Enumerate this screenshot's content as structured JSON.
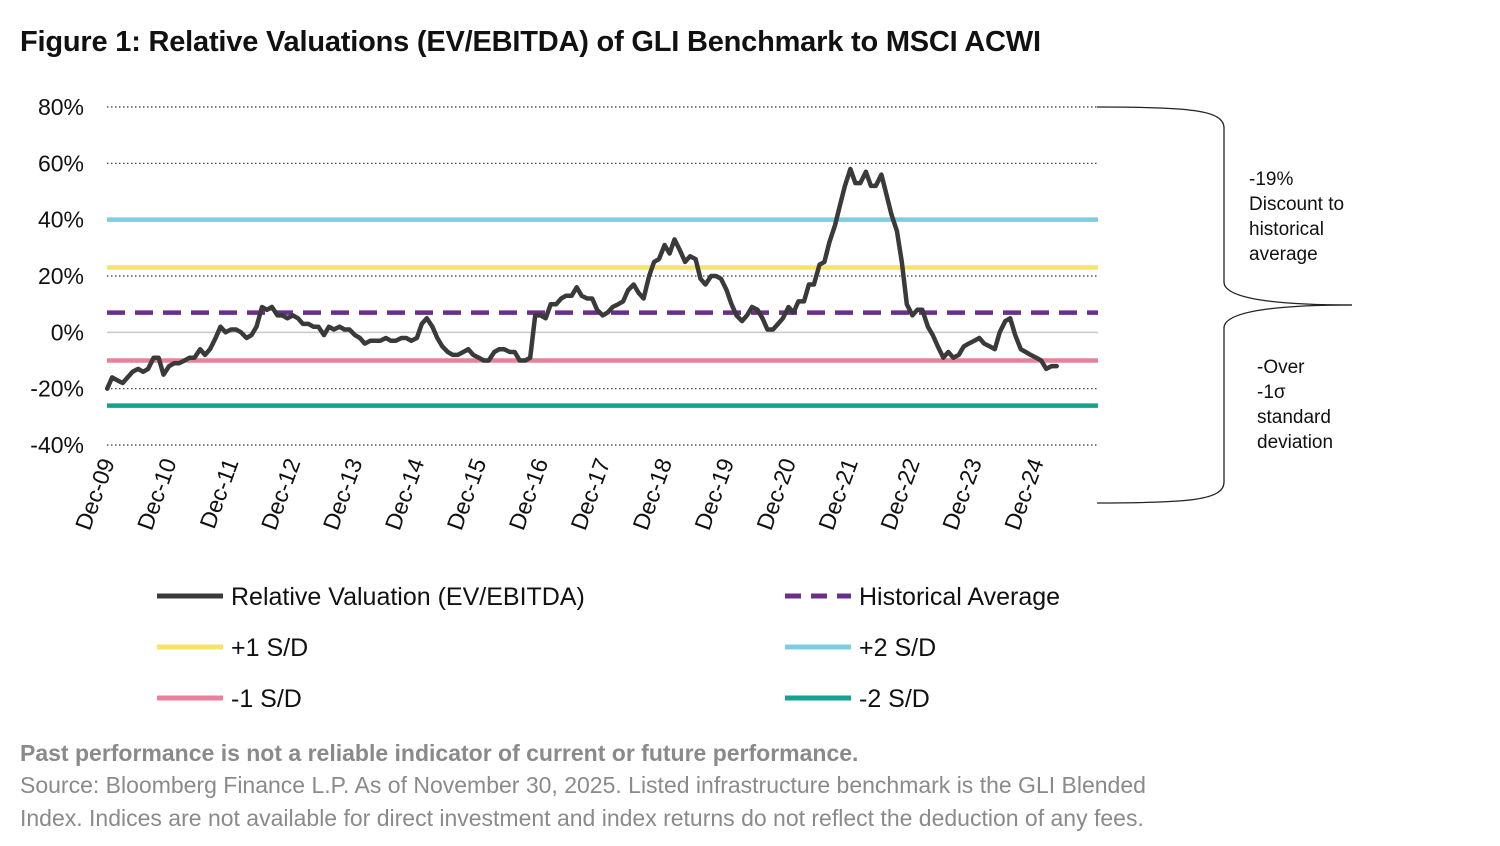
{
  "title": "Figure 1: Relative Valuations (EV/EBITDA) of GLI Benchmark to MSCI ACWI",
  "chart_data": {
    "type": "line",
    "title": "Figure 1: Relative Valuations (EV/EBITDA) of GLI Benchmark to MSCI ACWI",
    "ylim": [
      -40,
      80
    ],
    "y_ticks": [
      "80%",
      "60%",
      "40%",
      "20%",
      "0%",
      "-20%",
      "-40%"
    ],
    "y_tick_values": [
      80,
      60,
      40,
      20,
      0,
      -20,
      -40
    ],
    "x_ticks": [
      "Dec-09",
      "Dec-10",
      "Dec-11",
      "Dec-12",
      "Dec-13",
      "Dec-14",
      "Dec-15",
      "Dec-16",
      "Dec-17",
      "Dec-18",
      "Dec-19",
      "Dec-20",
      "Dec-21",
      "Dec-22",
      "Dec-23",
      "Dec-24"
    ],
    "x_range": [
      2009.917,
      2025.917
    ],
    "grid": true,
    "legend_position": "bottom",
    "series": [
      {
        "name": "Relative Valuation (EV/EBITDA)",
        "color": "#3a3a3a",
        "style": "solid",
        "points": [
          [
            2009.92,
            -20
          ],
          [
            2010.0,
            -16
          ],
          [
            2010.08,
            -17
          ],
          [
            2010.17,
            -18
          ],
          [
            2010.25,
            -16
          ],
          [
            2010.33,
            -14
          ],
          [
            2010.42,
            -13
          ],
          [
            2010.5,
            -14
          ],
          [
            2010.58,
            -13
          ],
          [
            2010.67,
            -9
          ],
          [
            2010.75,
            -9
          ],
          [
            2010.83,
            -15
          ],
          [
            2010.92,
            -12
          ],
          [
            2011.0,
            -11
          ],
          [
            2011.08,
            -11
          ],
          [
            2011.17,
            -10
          ],
          [
            2011.25,
            -9
          ],
          [
            2011.33,
            -9
          ],
          [
            2011.42,
            -6
          ],
          [
            2011.5,
            -8
          ],
          [
            2011.58,
            -6
          ],
          [
            2011.67,
            -2
          ],
          [
            2011.75,
            2
          ],
          [
            2011.83,
            0
          ],
          [
            2011.92,
            1
          ],
          [
            2012.0,
            1
          ],
          [
            2012.08,
            0
          ],
          [
            2012.17,
            -2
          ],
          [
            2012.25,
            -1
          ],
          [
            2012.33,
            2
          ],
          [
            2012.42,
            9
          ],
          [
            2012.5,
            8
          ],
          [
            2012.58,
            9
          ],
          [
            2012.67,
            6
          ],
          [
            2012.75,
            6
          ],
          [
            2012.83,
            5
          ],
          [
            2012.92,
            6
          ],
          [
            2013.0,
            5
          ],
          [
            2013.08,
            3
          ],
          [
            2013.17,
            3
          ],
          [
            2013.25,
            2
          ],
          [
            2013.33,
            2
          ],
          [
            2013.42,
            -1
          ],
          [
            2013.5,
            2
          ],
          [
            2013.58,
            1
          ],
          [
            2013.67,
            2
          ],
          [
            2013.75,
            1
          ],
          [
            2013.83,
            1
          ],
          [
            2013.92,
            -1
          ],
          [
            2014.0,
            -2
          ],
          [
            2014.08,
            -4
          ],
          [
            2014.17,
            -3
          ],
          [
            2014.25,
            -3
          ],
          [
            2014.33,
            -3
          ],
          [
            2014.42,
            -2
          ],
          [
            2014.5,
            -3
          ],
          [
            2014.58,
            -3
          ],
          [
            2014.67,
            -2
          ],
          [
            2014.75,
            -2
          ],
          [
            2014.83,
            -3
          ],
          [
            2014.92,
            -2
          ],
          [
            2015.0,
            3
          ],
          [
            2015.08,
            5
          ],
          [
            2015.17,
            2
          ],
          [
            2015.25,
            -2
          ],
          [
            2015.33,
            -5
          ],
          [
            2015.42,
            -7
          ],
          [
            2015.5,
            -8
          ],
          [
            2015.58,
            -8
          ],
          [
            2015.67,
            -7
          ],
          [
            2015.75,
            -6
          ],
          [
            2015.83,
            -8
          ],
          [
            2015.92,
            -9
          ],
          [
            2016.0,
            -10
          ],
          [
            2016.08,
            -10
          ],
          [
            2016.17,
            -7
          ],
          [
            2016.25,
            -6
          ],
          [
            2016.33,
            -6
          ],
          [
            2016.42,
            -7
          ],
          [
            2016.5,
            -7
          ],
          [
            2016.58,
            -10
          ],
          [
            2016.67,
            -10
          ],
          [
            2016.75,
            -9
          ],
          [
            2016.83,
            6
          ],
          [
            2016.92,
            6
          ],
          [
            2017.0,
            5
          ],
          [
            2017.08,
            10
          ],
          [
            2017.17,
            10
          ],
          [
            2017.25,
            12
          ],
          [
            2017.33,
            13
          ],
          [
            2017.42,
            13
          ],
          [
            2017.5,
            16
          ],
          [
            2017.58,
            13
          ],
          [
            2017.67,
            12
          ],
          [
            2017.75,
            12
          ],
          [
            2017.83,
            8
          ],
          [
            2017.92,
            6
          ],
          [
            2018.0,
            7
          ],
          [
            2018.08,
            9
          ],
          [
            2018.17,
            10
          ],
          [
            2018.25,
            11
          ],
          [
            2018.33,
            15
          ],
          [
            2018.42,
            17
          ],
          [
            2018.5,
            14
          ],
          [
            2018.58,
            12
          ],
          [
            2018.67,
            20
          ],
          [
            2018.75,
            25
          ],
          [
            2018.83,
            26
          ],
          [
            2018.92,
            31
          ],
          [
            2019.0,
            28
          ],
          [
            2019.08,
            33
          ],
          [
            2019.17,
            29
          ],
          [
            2019.25,
            25
          ],
          [
            2019.33,
            27
          ],
          [
            2019.42,
            26
          ],
          [
            2019.5,
            19
          ],
          [
            2019.58,
            17
          ],
          [
            2019.67,
            20
          ],
          [
            2019.75,
            20
          ],
          [
            2019.83,
            19
          ],
          [
            2019.92,
            15
          ],
          [
            2020.0,
            10
          ],
          [
            2020.08,
            6
          ],
          [
            2020.17,
            4
          ],
          [
            2020.25,
            6
          ],
          [
            2020.33,
            9
          ],
          [
            2020.42,
            8
          ],
          [
            2020.5,
            5
          ],
          [
            2020.58,
            1
          ],
          [
            2020.67,
            1
          ],
          [
            2020.75,
            3
          ],
          [
            2020.83,
            5
          ],
          [
            2020.92,
            9
          ],
          [
            2021.0,
            7
          ],
          [
            2021.08,
            11
          ],
          [
            2021.17,
            11
          ],
          [
            2021.25,
            17
          ],
          [
            2021.33,
            17
          ],
          [
            2021.42,
            24
          ],
          [
            2021.5,
            25
          ],
          [
            2021.58,
            32
          ],
          [
            2021.67,
            38
          ],
          [
            2021.75,
            45
          ],
          [
            2021.83,
            52
          ],
          [
            2021.92,
            58
          ],
          [
            2022.0,
            53
          ],
          [
            2022.08,
            53
          ],
          [
            2022.17,
            57
          ],
          [
            2022.25,
            52
          ],
          [
            2022.33,
            52
          ],
          [
            2022.42,
            56
          ],
          [
            2022.5,
            49
          ],
          [
            2022.58,
            42
          ],
          [
            2022.67,
            36
          ],
          [
            2022.75,
            25
          ],
          [
            2022.83,
            10
          ],
          [
            2022.92,
            6
          ],
          [
            2023.0,
            8
          ],
          [
            2023.08,
            8
          ],
          [
            2023.17,
            2
          ],
          [
            2023.25,
            -1
          ],
          [
            2023.33,
            -5
          ],
          [
            2023.42,
            -9
          ],
          [
            2023.5,
            -7
          ],
          [
            2023.58,
            -9
          ],
          [
            2023.67,
            -8
          ],
          [
            2023.75,
            -5
          ],
          [
            2023.83,
            -4
          ],
          [
            2023.92,
            -3
          ],
          [
            2024.0,
            -2
          ],
          [
            2024.08,
            -4
          ],
          [
            2024.17,
            -5
          ],
          [
            2024.25,
            -6
          ],
          [
            2024.33,
            0
          ],
          [
            2024.42,
            4
          ],
          [
            2024.5,
            5
          ],
          [
            2024.58,
            -1
          ],
          [
            2024.67,
            -6
          ],
          [
            2024.75,
            -7
          ],
          [
            2024.83,
            -8
          ],
          [
            2024.92,
            -9
          ],
          [
            2025.0,
            -10
          ],
          [
            2025.08,
            -13
          ],
          [
            2025.17,
            -12
          ],
          [
            2025.25,
            -12
          ]
        ]
      },
      {
        "name": "Historical Average",
        "color": "#6a2f8a",
        "style": "dashed",
        "value": 7
      },
      {
        "name": "+1 S/D",
        "color": "#f7e36b",
        "style": "solid",
        "value": 23
      },
      {
        "name": "+2 S/D",
        "color": "#7ecde0",
        "style": "solid",
        "value": 40
      },
      {
        "name": "-1 S/D",
        "color": "#e8829a",
        "style": "solid",
        "value": -10
      },
      {
        "name": "-2 S/D",
        "color": "#16a08f",
        "style": "solid",
        "value": -26
      }
    ],
    "annotations": {
      "top": [
        "-19%",
        "Discount to",
        "historical",
        "average"
      ],
      "bottom": [
        "-Over",
        "-1σ",
        "standard",
        "deviation"
      ]
    }
  },
  "footer": {
    "disclaimer": "Past performance is not a reliable indicator of current or future performance.",
    "source_line1": "Source: Bloomberg Finance L.P. As of November 30, 2025. Listed infrastructure benchmark is the GLI Blended",
    "source_line2": "Index. Indices are not available for direct investment and index returns do not reflect the deduction of any fees."
  }
}
